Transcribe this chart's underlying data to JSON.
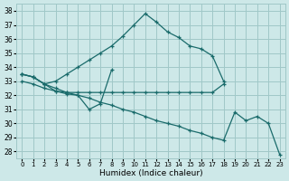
{
  "xlabel": "Humidex (Indice chaleur)",
  "xlim": [
    -0.5,
    23.5
  ],
  "ylim": [
    27.5,
    38.5
  ],
  "yticks": [
    28,
    29,
    30,
    31,
    32,
    33,
    34,
    35,
    36,
    37,
    38
  ],
  "xticks": [
    0,
    1,
    2,
    3,
    4,
    5,
    6,
    7,
    8,
    9,
    10,
    11,
    12,
    13,
    14,
    15,
    16,
    17,
    18,
    19,
    20,
    21,
    22,
    23
  ],
  "bg_color": "#cde8e8",
  "grid_color": "#a0c8c8",
  "line_color": "#1a6b6b",
  "line1_x": [
    0,
    1,
    2,
    3,
    4,
    5,
    6,
    7,
    8,
    9,
    10,
    11,
    12,
    13,
    14,
    15,
    16,
    17,
    18
  ],
  "line1_y": [
    33.5,
    33.3,
    32.8,
    33.0,
    33.5,
    34.0,
    34.5,
    35.0,
    35.5,
    36.2,
    37.0,
    37.8,
    37.2,
    36.5,
    36.1,
    35.5,
    35.3,
    34.8,
    33.0
  ],
  "line2_x": [
    0,
    1,
    2,
    3,
    4,
    5,
    6,
    7,
    8,
    9,
    10,
    11,
    12,
    13,
    14,
    15,
    16,
    17,
    18
  ],
  "line2_y": [
    33.0,
    32.8,
    32.5,
    32.3,
    32.2,
    32.2,
    32.2,
    32.2,
    32.2,
    32.2,
    32.2,
    32.2,
    32.2,
    32.2,
    32.2,
    32.2,
    32.2,
    32.2,
    32.8
  ],
  "line3_x": [
    0,
    1,
    2,
    3,
    4,
    5,
    6,
    7,
    8
  ],
  "line3_y": [
    33.5,
    33.3,
    32.8,
    32.3,
    32.1,
    32.0,
    31.0,
    31.4,
    33.8
  ],
  "line4_x": [
    0,
    1,
    2,
    3,
    4,
    5,
    6,
    7,
    8,
    9,
    10,
    11,
    12,
    13,
    14,
    15,
    16,
    17,
    18,
    19,
    20,
    21,
    22,
    23
  ],
  "line4_y": [
    33.5,
    33.3,
    32.8,
    32.5,
    32.2,
    32.0,
    31.8,
    31.5,
    31.3,
    31.0,
    30.8,
    30.5,
    30.2,
    30.0,
    29.8,
    29.5,
    29.3,
    29.0,
    28.8,
    30.8,
    30.2,
    30.5,
    30.0,
    27.8
  ]
}
